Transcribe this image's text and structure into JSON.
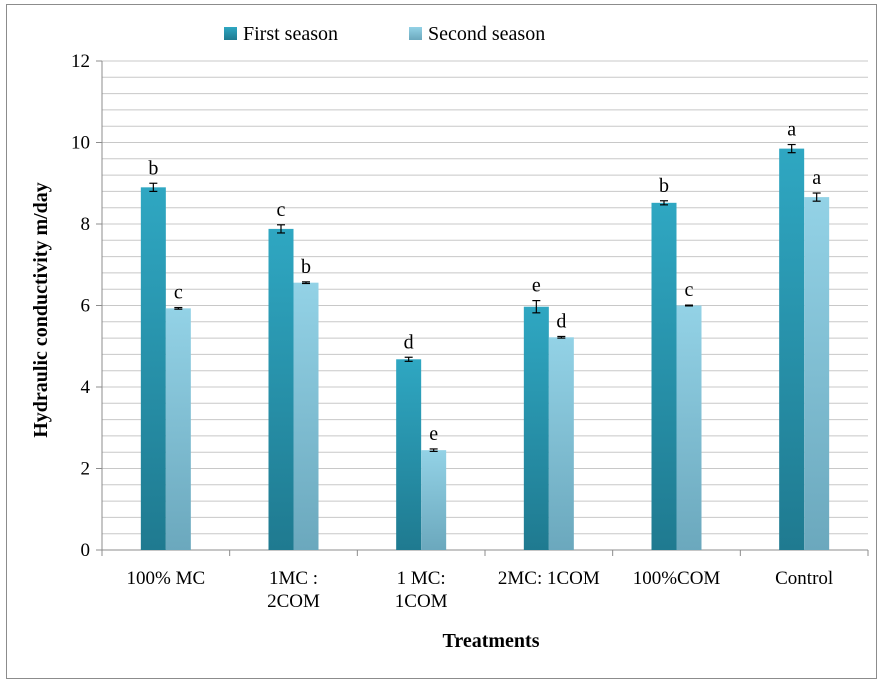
{
  "chart_data": {
    "type": "bar",
    "title": "",
    "xlabel": "Treatments",
    "ylabel": "Hydraulic conductivity m/day",
    "ylim": [
      0,
      12
    ],
    "yticks": [
      0,
      2,
      4,
      6,
      8,
      10,
      12
    ],
    "minor_grid_step": 0.4,
    "grid": true,
    "legend_position": "top",
    "categories": [
      [
        "100% MC"
      ],
      [
        "1MC :",
        "2COM"
      ],
      [
        "1 MC:",
        "1COM"
      ],
      [
        "2MC: 1COM"
      ],
      [
        "100%COM"
      ],
      [
        "Control"
      ]
    ],
    "series": [
      {
        "name": "First season",
        "color": "#2b9db8",
        "values": [
          8.9,
          7.88,
          4.68,
          5.97,
          8.52,
          9.85
        ],
        "errors": [
          0.1,
          0.1,
          0.05,
          0.15,
          0.05,
          0.1
        ],
        "letters": [
          "b",
          "c",
          "d",
          "e",
          "b",
          "a"
        ]
      },
      {
        "name": "Second season",
        "color": "#8ccbe0",
        "values": [
          5.93,
          6.56,
          2.45,
          5.22,
          6.0,
          8.66
        ],
        "errors": [
          0.02,
          0.02,
          0.03,
          0.02,
          0.01,
          0.1
        ],
        "letters": [
          "c",
          "b",
          "e",
          "d",
          "c",
          "a"
        ]
      }
    ]
  }
}
